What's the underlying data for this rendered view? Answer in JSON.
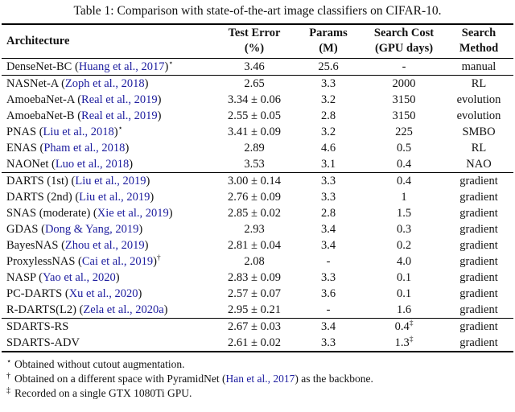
{
  "caption": "Table 1: Comparison with state-of-the-art image classifiers on CIFAR-10.",
  "colors": {
    "link": "#1c1c9e",
    "text": "#121212",
    "rule": "#000000"
  },
  "table": {
    "header": [
      {
        "line1": "Architecture",
        "line2": ""
      },
      {
        "line1": "Test Error",
        "line2": "(%)"
      },
      {
        "line1": "Params",
        "line2": "(M)"
      },
      {
        "line1": "Search Cost",
        "line2": "(GPU days)"
      },
      {
        "line1": "Search",
        "line2": "Method"
      }
    ],
    "sections": [
      {
        "rows": [
          {
            "arch": "DenseNet-BC",
            "cite": "Huang et al., 2017",
            "sup": "⋆",
            "test_error": "3.46",
            "params": "25.6",
            "cost": "-",
            "cost_sup": "",
            "method": "manual"
          }
        ]
      },
      {
        "rows": [
          {
            "arch": "NASNet-A",
            "cite": "Zoph et al., 2018",
            "sup": "",
            "test_error": "2.65",
            "params": "3.3",
            "cost": "2000",
            "cost_sup": "",
            "method": "RL"
          },
          {
            "arch": "AmoebaNet-A",
            "cite": "Real et al., 2019",
            "sup": "",
            "test_error": "3.34 ± 0.06",
            "params": "3.2",
            "cost": "3150",
            "cost_sup": "",
            "method": "evolution"
          },
          {
            "arch": "AmoebaNet-B",
            "cite": "Real et al., 2019",
            "sup": "",
            "test_error": "2.55 ± 0.05",
            "params": "2.8",
            "cost": "3150",
            "cost_sup": "",
            "method": "evolution"
          },
          {
            "arch": "PNAS",
            "cite": "Liu et al., 2018",
            "sup": "⋆",
            "test_error": "3.41 ± 0.09",
            "params": "3.2",
            "cost": "225",
            "cost_sup": "",
            "method": "SMBO"
          },
          {
            "arch": "ENAS",
            "cite": "Pham et al., 2018",
            "sup": "",
            "test_error": "2.89",
            "params": "4.6",
            "cost": "0.5",
            "cost_sup": "",
            "method": "RL"
          },
          {
            "arch": "NAONet",
            "cite": "Luo et al., 2018",
            "sup": "",
            "test_error": "3.53",
            "params": "3.1",
            "cost": "0.4",
            "cost_sup": "",
            "method": "NAO"
          }
        ]
      },
      {
        "rows": [
          {
            "arch": "DARTS (1st)",
            "cite": "Liu et al., 2019",
            "sup": "",
            "test_error": "3.00 ± 0.14",
            "params": "3.3",
            "cost": "0.4",
            "cost_sup": "",
            "method": "gradient"
          },
          {
            "arch": "DARTS (2nd)",
            "cite": "Liu et al., 2019",
            "sup": "",
            "test_error": "2.76 ± 0.09",
            "params": "3.3",
            "cost": "1",
            "cost_sup": "",
            "method": "gradient"
          },
          {
            "arch": "SNAS (moderate)",
            "cite": "Xie et al., 2019",
            "sup": "",
            "test_error": "2.85 ± 0.02",
            "params": "2.8",
            "cost": "1.5",
            "cost_sup": "",
            "method": "gradient"
          },
          {
            "arch": "GDAS",
            "cite": "Dong & Yang, 2019",
            "sup": "",
            "test_error": "2.93",
            "params": "3.4",
            "cost": "0.3",
            "cost_sup": "",
            "method": "gradient"
          },
          {
            "arch": "BayesNAS",
            "cite": "Zhou et al., 2019",
            "sup": "",
            "test_error": "2.81 ± 0.04",
            "params": "3.4",
            "cost": "0.2",
            "cost_sup": "",
            "method": "gradient"
          },
          {
            "arch": "ProxylessNAS",
            "cite": "Cai et al., 2019",
            "sup": "†",
            "test_error": "2.08",
            "params": "-",
            "cost": "4.0",
            "cost_sup": "",
            "method": "gradient"
          },
          {
            "arch": "NASP",
            "cite": "Yao et al., 2020",
            "sup": "",
            "test_error": "2.83 ± 0.09",
            "params": "3.3",
            "cost": "0.1",
            "cost_sup": "",
            "method": "gradient"
          },
          {
            "arch": "PC-DARTS",
            "cite": "Xu et al., 2020",
            "sup": "",
            "test_error": "2.57 ± 0.07",
            "params": "3.6",
            "cost": "0.1",
            "cost_sup": "",
            "method": "gradient"
          },
          {
            "arch": "R-DARTS(L2)",
            "cite": "Zela et al., 2020a",
            "sup": "",
            "test_error": "2.95 ± 0.21",
            "params": "-",
            "cost": "1.6",
            "cost_sup": "",
            "method": "gradient"
          }
        ]
      },
      {
        "rows": [
          {
            "arch": "SDARTS-RS",
            "cite": "",
            "sup": "",
            "test_error": "2.67 ± 0.03",
            "params": "3.4",
            "cost": "0.4",
            "cost_sup": "‡",
            "method": "gradient"
          },
          {
            "arch": "SDARTS-ADV",
            "cite": "",
            "sup": "",
            "test_error": "2.61 ± 0.02",
            "params": "3.3",
            "cost": "1.3",
            "cost_sup": "‡",
            "method": "gradient"
          }
        ]
      }
    ]
  },
  "footnotes": [
    {
      "marker": "⋆",
      "pre": "Obtained without cutout augmentation.",
      "cite": "",
      "post": ""
    },
    {
      "marker": "†",
      "pre": "Obtained on a different space with PyramidNet (",
      "cite": "Han et al., 2017",
      "post": ") as the backbone."
    },
    {
      "marker": "‡",
      "pre": "Recorded on a single GTX 1080Ti GPU.",
      "cite": "",
      "post": ""
    }
  ]
}
